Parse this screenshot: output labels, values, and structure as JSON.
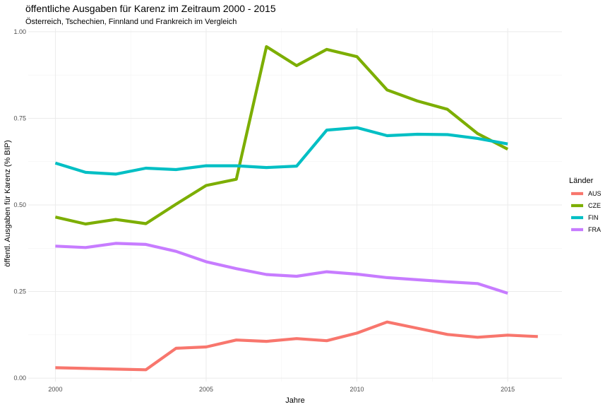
{
  "chart_data": {
    "type": "line",
    "title": "öffentliche Ausgaben für Karenz im Zeitraum 2000 - 2015",
    "subtitle": "Österreich, Tschechien, Finnland und Frankreich im Vergleich",
    "xlabel": "Jahre",
    "ylabel": "öffentl. Ausgaben für Karenz (% BIP)",
    "xlim": [
      1999.1,
      2016.8
    ],
    "ylim": [
      -0.01,
      1.01
    ],
    "x_ticks": [
      2000,
      2005,
      2010,
      2015
    ],
    "x_tick_labels": [
      "2000",
      "2005",
      "2010",
      "2015"
    ],
    "y_ticks": [
      0,
      0.25,
      0.5,
      0.75,
      1.0
    ],
    "y_tick_labels": [
      "0.00",
      "0.25",
      "0.50",
      "0.75",
      "1.00"
    ],
    "grid": true,
    "legend": {
      "title": "Länder",
      "position": "right"
    },
    "series": [
      {
        "name": "AUS",
        "color": "#F8766D",
        "x": [
          2000,
          2001,
          2002,
          2003,
          2004,
          2005,
          2006,
          2007,
          2008,
          2009,
          2010,
          2011,
          2012,
          2013,
          2014,
          2015,
          2016
        ],
        "y": [
          0.03,
          0.028,
          0.026,
          0.024,
          0.086,
          0.09,
          0.11,
          0.106,
          0.114,
          0.108,
          0.13,
          0.162,
          0.144,
          0.126,
          0.118,
          0.124,
          0.12
        ]
      },
      {
        "name": "CZE",
        "color": "#7CAE00",
        "x": [
          2000,
          2001,
          2002,
          2003,
          2004,
          2005,
          2006,
          2007,
          2008,
          2009,
          2010,
          2011,
          2012,
          2013,
          2014,
          2015
        ],
        "y": [
          0.465,
          0.445,
          0.458,
          0.446,
          0.502,
          0.556,
          0.574,
          0.957,
          0.902,
          0.949,
          0.928,
          0.832,
          0.8,
          0.776,
          0.706,
          0.661
        ]
      },
      {
        "name": "FIN",
        "color": "#00BFC4",
        "x": [
          2000,
          2001,
          2002,
          2003,
          2004,
          2005,
          2006,
          2007,
          2008,
          2009,
          2010,
          2011,
          2012,
          2013,
          2014,
          2015
        ],
        "y": [
          0.621,
          0.594,
          0.589,
          0.606,
          0.602,
          0.613,
          0.613,
          0.608,
          0.612,
          0.716,
          0.723,
          0.7,
          0.704,
          0.703,
          0.692,
          0.676
        ]
      },
      {
        "name": "FRA",
        "color": "#C77CFF",
        "x": [
          2000,
          2001,
          2002,
          2003,
          2004,
          2005,
          2006,
          2007,
          2008,
          2009,
          2010,
          2011,
          2012,
          2013,
          2014,
          2015
        ],
        "y": [
          0.381,
          0.377,
          0.389,
          0.386,
          0.366,
          0.336,
          0.316,
          0.299,
          0.294,
          0.307,
          0.3,
          0.29,
          0.284,
          0.278,
          0.273,
          0.245
        ]
      }
    ]
  }
}
